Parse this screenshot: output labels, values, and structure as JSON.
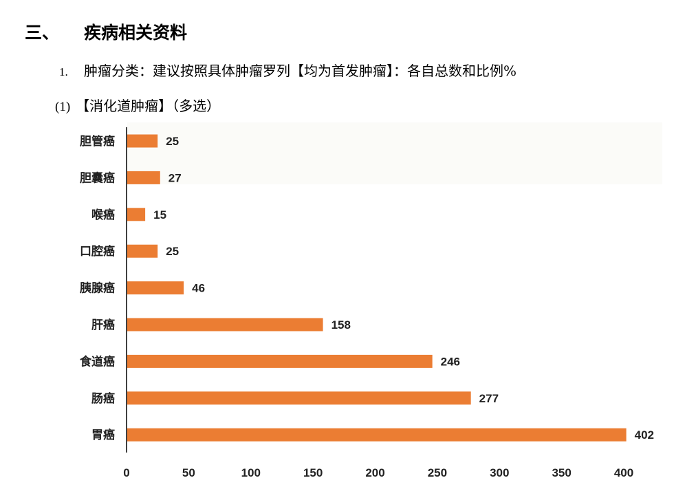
{
  "document": {
    "section_number": "三、",
    "section_title": "疾病相关资料",
    "item_number": "1.",
    "item_text": "肿瘤分类：建议按照具体肿瘤罗列【均为首发肿瘤】：各自总数和比例%",
    "subitem_number": "(1)",
    "subitem_text": "【消化道肿瘤】（多选）"
  },
  "chart_data": {
    "type": "bar",
    "orientation": "horizontal",
    "categories": [
      "胆管癌",
      "胆囊癌",
      "喉癌",
      "口腔癌",
      "胰腺癌",
      "肝癌",
      "食道癌",
      "肠癌",
      "胃癌"
    ],
    "values": [
      25,
      27,
      15,
      25,
      46,
      158,
      246,
      277,
      402
    ],
    "xlim": [
      0,
      400
    ],
    "xticks": [
      0,
      50,
      100,
      150,
      200,
      250,
      300,
      350,
      400
    ],
    "bar_color": "#EB7D33",
    "grid": false
  }
}
